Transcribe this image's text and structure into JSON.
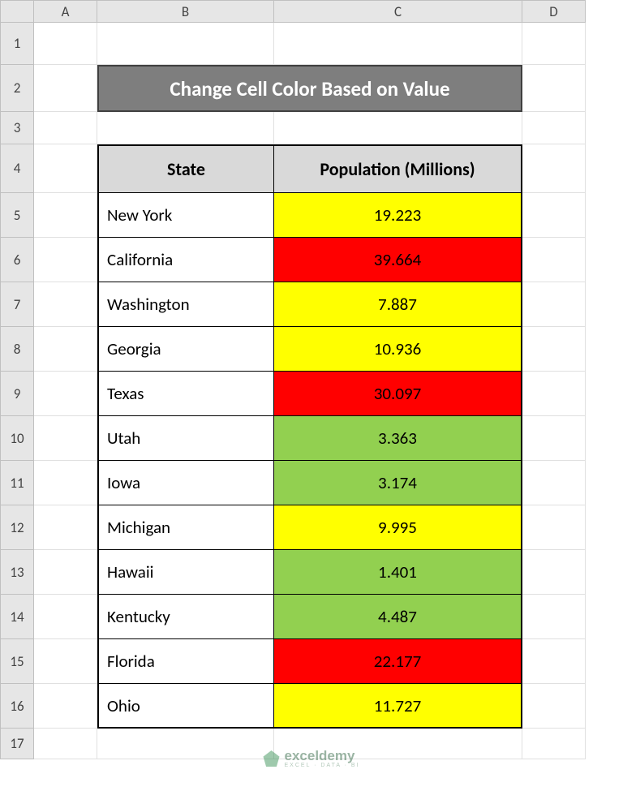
{
  "columns": [
    "A",
    "B",
    "C",
    "D"
  ],
  "row_heights": {
    "default": 55,
    "r1": 52,
    "r2": 58,
    "r3": 40,
    "r4": 60,
    "r17": 38
  },
  "title": "Change Cell Color Based on Value",
  "headers": {
    "state": "State",
    "pop": "Population (Millions)"
  },
  "data": [
    {
      "state": "New York",
      "pop": "19.223",
      "fill": "#ffff00"
    },
    {
      "state": "California",
      "pop": "39.664",
      "fill": "#ff0000"
    },
    {
      "state": "Washington",
      "pop": "7.887",
      "fill": "#ffff00"
    },
    {
      "state": "Georgia",
      "pop": "10.936",
      "fill": "#ffff00"
    },
    {
      "state": "Texas",
      "pop": "30.097",
      "fill": "#ff0000"
    },
    {
      "state": "Utah",
      "pop": "3.363",
      "fill": "#92d050"
    },
    {
      "state": "Iowa",
      "pop": "3.174",
      "fill": "#92d050"
    },
    {
      "state": "Michigan",
      "pop": "9.995",
      "fill": "#ffff00"
    },
    {
      "state": "Hawaii",
      "pop": "1.401",
      "fill": "#92d050"
    },
    {
      "state": "Kentucky",
      "pop": "4.487",
      "fill": "#92d050"
    },
    {
      "state": "Florida",
      "pop": "22.177",
      "fill": "#ff0000"
    },
    {
      "state": "Ohio",
      "pop": "11.727",
      "fill": "#ffff00"
    }
  ],
  "colors": {
    "grid_header_bg": "#e6e6e6",
    "grid_header_border": "#c0c0c0",
    "cell_border": "#e0e0e0",
    "title_bg": "#7e7e7e",
    "title_fg": "#ffffff",
    "table_header_bg": "#d9d9d9",
    "table_border": "#000000",
    "yellow": "#ffff00",
    "red": "#ff0000",
    "green": "#92d050"
  },
  "watermark": {
    "main": "exceldemy",
    "sub": "EXCEL · DATA · BI"
  }
}
